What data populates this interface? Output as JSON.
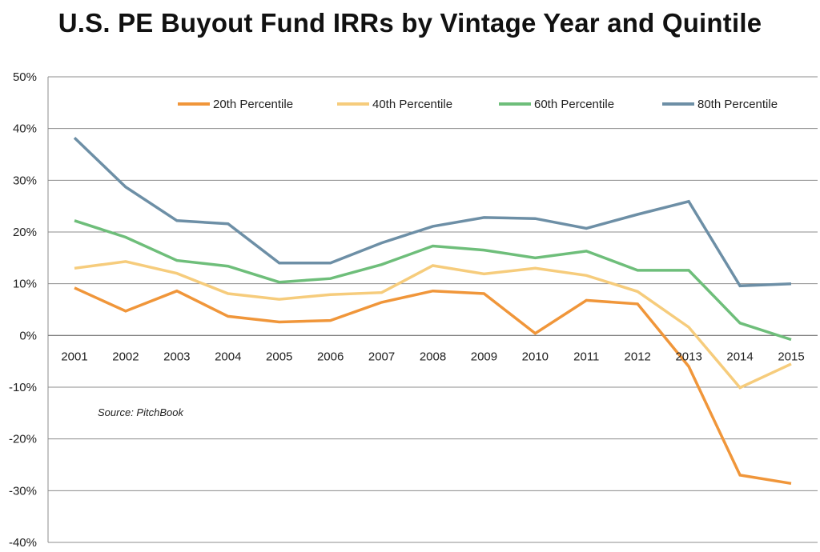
{
  "chart_data": {
    "type": "line",
    "title": "U.S. PE Buyout Fund IRRs by Vintage Year and Quintile",
    "xlabel": "",
    "ylabel": "",
    "categories": [
      "2001",
      "2002",
      "2003",
      "2004",
      "2005",
      "2006",
      "2007",
      "2008",
      "2009",
      "2010",
      "2011",
      "2012",
      "2013",
      "2014",
      "2015"
    ],
    "ylim": [
      -40,
      50
    ],
    "yticks": [
      50,
      40,
      30,
      20,
      10,
      0,
      -10,
      -20,
      -30,
      -40
    ],
    "ytick_labels": [
      "50%",
      "40%",
      "30%",
      "20%",
      "10%",
      "0%",
      "-10%",
      "-20%",
      "-30%",
      "-40%"
    ],
    "grid": true,
    "legend_position": "top-right",
    "annotation": "Source: PitchBook",
    "series": [
      {
        "name": "20th Percentile",
        "color": "#F0963A",
        "values": [
          9.2,
          4.7,
          8.6,
          3.7,
          2.6,
          2.9,
          6.4,
          8.6,
          8.1,
          0.4,
          6.8,
          6.1,
          -6.0,
          -27.0,
          -28.6
        ]
      },
      {
        "name": "40th Percentile",
        "color": "#F6CC7C",
        "values": [
          13.0,
          14.3,
          12.0,
          8.1,
          7.0,
          7.9,
          8.3,
          13.5,
          11.9,
          13.0,
          11.6,
          8.5,
          1.6,
          -10.1,
          -5.5
        ]
      },
      {
        "name": "60th Percentile",
        "color": "#6EBE7A",
        "values": [
          22.2,
          19.0,
          14.5,
          13.4,
          10.3,
          11.0,
          13.7,
          17.3,
          16.5,
          15.0,
          16.3,
          12.6,
          12.6,
          2.4,
          -0.8
        ]
      },
      {
        "name": "80th Percentile",
        "color": "#6D8FA6",
        "values": [
          38.2,
          28.7,
          22.2,
          21.6,
          14.0,
          14.0,
          17.9,
          21.1,
          22.8,
          22.6,
          20.7,
          23.4,
          25.9,
          9.6,
          10.0
        ]
      }
    ]
  }
}
